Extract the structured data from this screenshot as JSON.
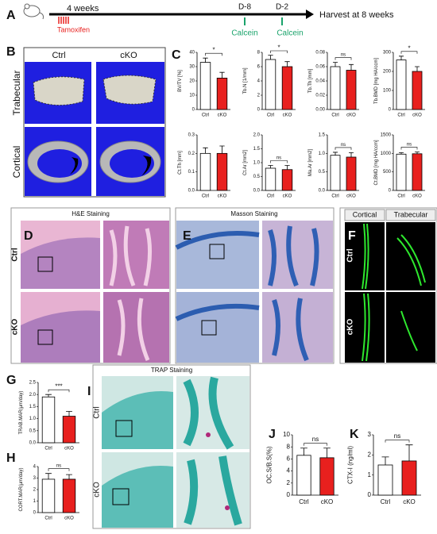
{
  "timeline": {
    "letter": "A",
    "start": "4 weeks",
    "drug": "Tamoxifen",
    "d8": "D-8",
    "d2": "D-2",
    "calcein1": "Calcein",
    "calcein2": "Calcein",
    "end": "Harvest at 8 weeks"
  },
  "micro_ct": {
    "letter": "B",
    "columns": [
      "Ctrl",
      "cKO"
    ],
    "rows": [
      "Trabecular",
      "Cortical"
    ]
  },
  "chart_group": {
    "letter": "C"
  },
  "histology": {
    "D": {
      "letter": "D",
      "title": "H&E Staining",
      "rows": [
        "Ctrl",
        "cKO"
      ]
    },
    "E": {
      "letter": "E",
      "title": "Masson Staining"
    },
    "F": {
      "letter": "F",
      "columns": [
        "Cortical",
        "Trabecular"
      ],
      "rows": [
        "Ctrl",
        "cKO"
      ]
    },
    "I": {
      "letter": "I",
      "title": "TRAP Staining",
      "rows": [
        "Ctrl",
        "cKO"
      ]
    }
  },
  "chart_data": [
    {
      "type": "bar",
      "ylabel": "BV/TV [%]",
      "categories": [
        "Ctrl",
        "cKO"
      ],
      "values": [
        33,
        22
      ],
      "errors": [
        3,
        4
      ],
      "colors": [
        "#ffffff",
        "#e8201e"
      ],
      "ylim": [
        0,
        40
      ],
      "yticks": [
        0,
        10,
        20,
        30,
        40
      ],
      "significance": "*"
    },
    {
      "type": "bar",
      "ylabel": "Tb.N [1/mm]",
      "categories": [
        "Ctrl",
        "cKO"
      ],
      "values": [
        7,
        6
      ],
      "errors": [
        0.6,
        0.7
      ],
      "colors": [
        "#ffffff",
        "#e8201e"
      ],
      "ylim": [
        0,
        8
      ],
      "yticks": [
        0,
        2,
        4,
        6,
        8
      ],
      "significance": "*"
    },
    {
      "type": "bar",
      "ylabel": "Tb.Th [mm]",
      "categories": [
        "Ctrl",
        "cKO"
      ],
      "values": [
        0.06,
        0.055
      ],
      "errors": [
        0.006,
        0.008
      ],
      "colors": [
        "#ffffff",
        "#e8201e"
      ],
      "ylim": [
        0,
        0.08
      ],
      "yticks": [
        {
          "value": 0,
          "label": "0.00"
        },
        {
          "value": 0.02,
          "label": "0.02"
        },
        {
          "value": 0.04,
          "label": "0.04"
        },
        {
          "value": 0.06,
          "label": "0.06"
        },
        {
          "value": 0.08,
          "label": "0.08"
        }
      ],
      "significance": "ns"
    },
    {
      "type": "bar",
      "ylabel": "Tb.BMD [mg HA/ccm]",
      "categories": [
        "Ctrl",
        "cKO"
      ],
      "values": [
        260,
        200
      ],
      "errors": [
        20,
        25
      ],
      "colors": [
        "#ffffff",
        "#e8201e"
      ],
      "ylim": [
        0,
        300
      ],
      "yticks": [
        0,
        100,
        200,
        300
      ],
      "significance": "*"
    },
    {
      "type": "bar",
      "ylabel": "Ct.Th [mm]",
      "categories": [
        "Ctrl",
        "cKO"
      ],
      "values": [
        0.2,
        0.2
      ],
      "errors": [
        0.03,
        0.04
      ],
      "colors": [
        "#ffffff",
        "#e8201e"
      ],
      "ylim": [
        0,
        0.3
      ],
      "yticks": [
        {
          "value": 0,
          "label": "0.0"
        },
        0.1,
        0.2,
        0.3
      ]
    },
    {
      "type": "bar",
      "ylabel": "Ct.Ar [mm2]",
      "categories": [
        "Ctrl",
        "cKO"
      ],
      "values": [
        0.8,
        0.75
      ],
      "errors": [
        0.1,
        0.15
      ],
      "colors": [
        "#ffffff",
        "#e8201e"
      ],
      "ylim": [
        0,
        2
      ],
      "yticks": [
        {
          "value": 0,
          "label": "0.0"
        },
        0.5,
        {
          "value": 1,
          "label": "1.0"
        },
        1.5,
        {
          "value": 2,
          "label": "2.0"
        }
      ],
      "significance": "ns"
    },
    {
      "type": "bar",
      "ylabel": "Ma.Ar [mm2]",
      "categories": [
        "Ctrl",
        "cKO"
      ],
      "values": [
        0.95,
        0.9
      ],
      "errors": [
        0.08,
        0.12
      ],
      "colors": [
        "#ffffff",
        "#e8201e"
      ],
      "ylim": [
        0,
        1.5
      ],
      "yticks": [
        {
          "value": 0,
          "label": "0.0"
        },
        0.5,
        {
          "value": 1,
          "label": "1.0"
        },
        1.5
      ],
      "significance": "ns"
    },
    {
      "type": "bar",
      "ylabel": "Ct.BMD [mg HA/ccm]",
      "categories": [
        "Ctrl",
        "cKO"
      ],
      "values": [
        980,
        990
      ],
      "errors": [
        40,
        50
      ],
      "colors": [
        "#ffffff",
        "#e8201e"
      ],
      "ylim": [
        0,
        1500
      ],
      "yticks": [
        0,
        500,
        1000,
        1500
      ],
      "significance": "ns"
    },
    {
      "type": "bar",
      "letter": "G",
      "ylabel": "TRAB.MAR(µm/day)",
      "categories": [
        "Ctrl",
        "cKO"
      ],
      "values": [
        1.9,
        1.1
      ],
      "errors": [
        0.1,
        0.2
      ],
      "colors": [
        "#ffffff",
        "#e8201e"
      ],
      "ylim": [
        0,
        2.5
      ],
      "yticks": [
        {
          "value": 0,
          "label": "0.0"
        },
        0.5,
        {
          "value": 1,
          "label": "1.0"
        },
        1.5,
        {
          "value": 2,
          "label": "2.0"
        },
        2.5
      ],
      "significance": "***"
    },
    {
      "type": "bar",
      "letter": "H",
      "ylabel": "CORT.MAR(µm/day)",
      "categories": [
        "Ctrl",
        "cKO"
      ],
      "values": [
        2.9,
        2.9
      ],
      "errors": [
        0.5,
        0.4
      ],
      "colors": [
        "#ffffff",
        "#e8201e"
      ],
      "ylim": [
        0,
        4
      ],
      "yticks": [
        0,
        1,
        2,
        3,
        4
      ],
      "significance": "ns"
    },
    {
      "type": "bar",
      "letter": "J",
      "ylabel": "OC.S/B.S(%)",
      "categories": [
        "Ctrl",
        "cKO"
      ],
      "values": [
        6.6,
        6.2
      ],
      "errors": [
        1.2,
        1.6
      ],
      "colors": [
        "#ffffff",
        "#e8201e"
      ],
      "ylim": [
        0,
        10
      ],
      "yticks": [
        0,
        2,
        4,
        6,
        8,
        10
      ],
      "significance": "ns"
    },
    {
      "type": "bar",
      "letter": "K",
      "ylabel": "CTX-I (ng/ml)",
      "categories": [
        "Ctrl",
        "cKO"
      ],
      "values": [
        1.5,
        1.7
      ],
      "errors": [
        0.4,
        0.8
      ],
      "colors": [
        "#ffffff",
        "#e8201e"
      ],
      "ylim": [
        0,
        3
      ],
      "yticks": [
        0,
        1,
        2,
        3
      ],
      "significance": "ns"
    }
  ]
}
